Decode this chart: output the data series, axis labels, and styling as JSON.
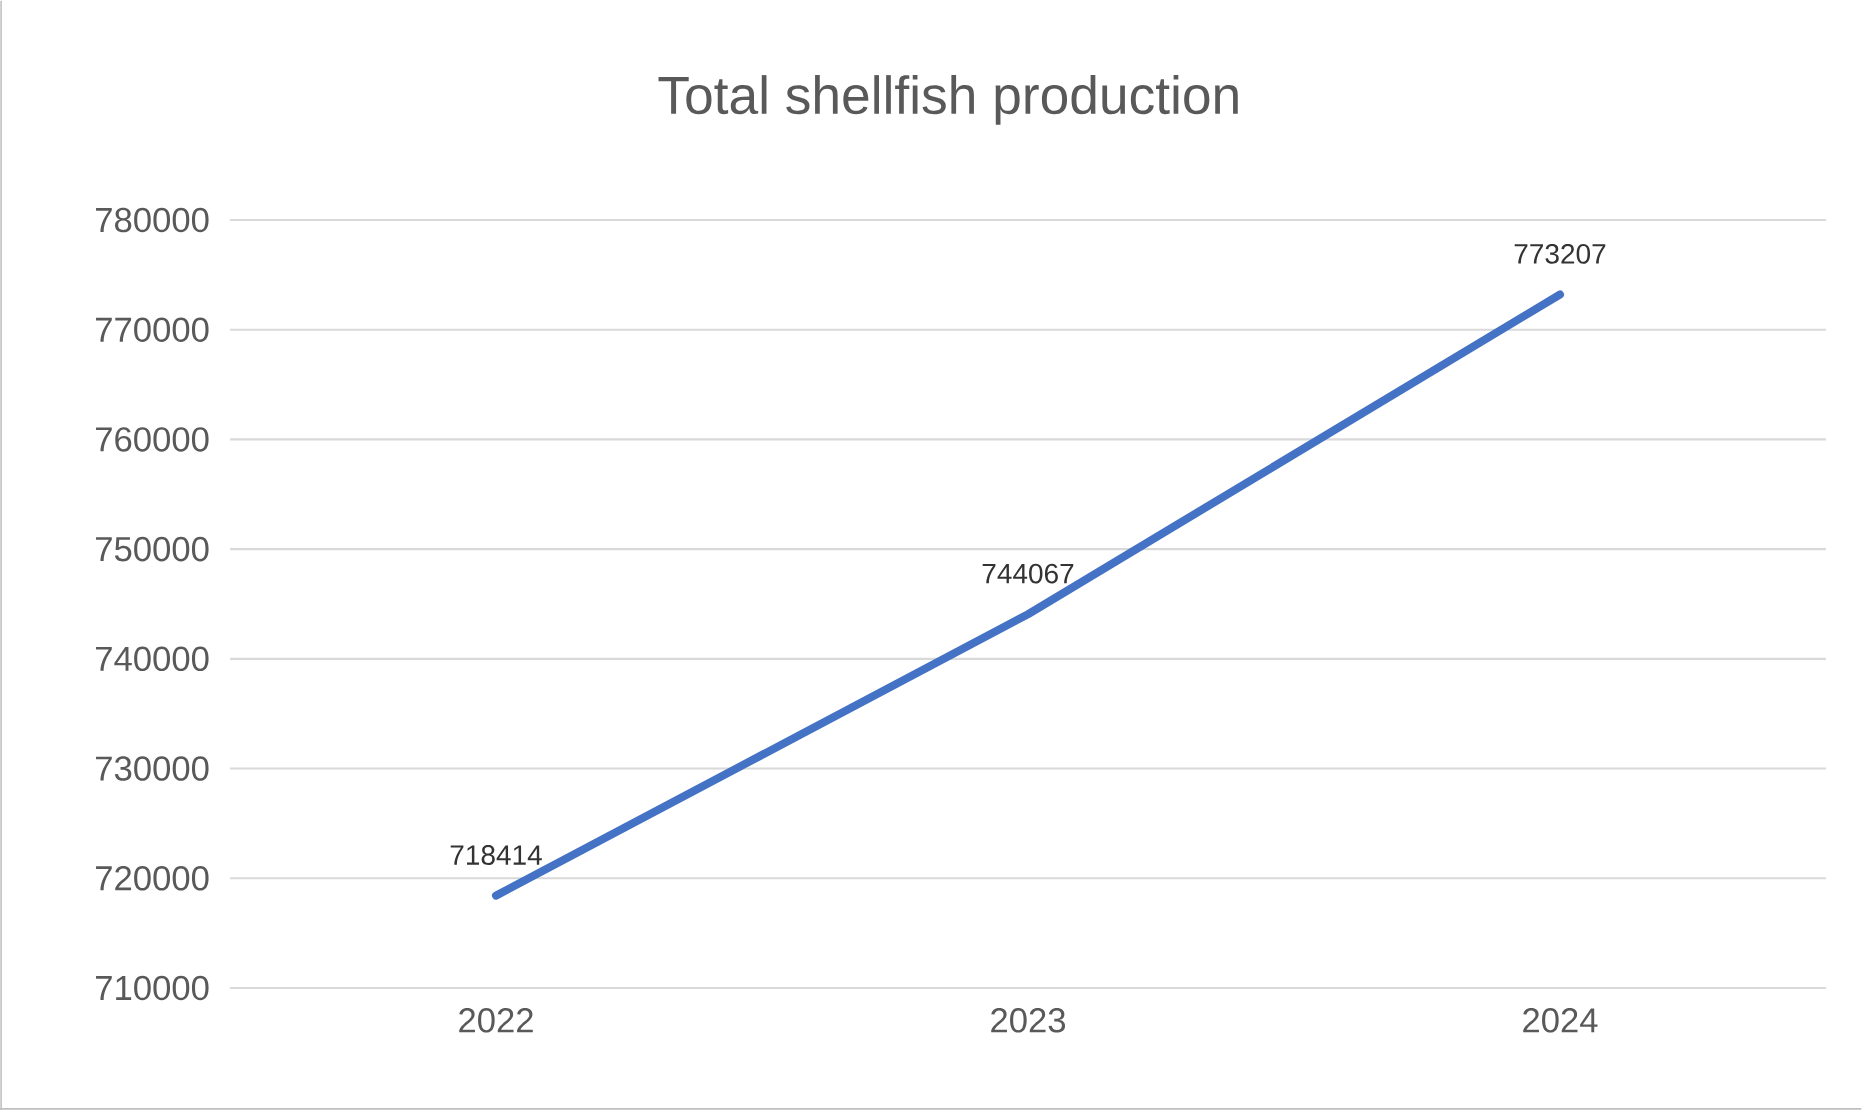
{
  "chart_data": {
    "type": "line",
    "title": "Total shellfish production",
    "categories": [
      "2022",
      "2023",
      "2024"
    ],
    "values": [
      718414,
      744067,
      773207
    ],
    "color": "#4472c4",
    "ylim": [
      710000,
      780000
    ],
    "yticks": [
      710000,
      720000,
      730000,
      740000,
      750000,
      760000,
      770000,
      780000
    ],
    "grid": "y",
    "data_labels": true,
    "marker": "none",
    "line_style": "solid"
  }
}
